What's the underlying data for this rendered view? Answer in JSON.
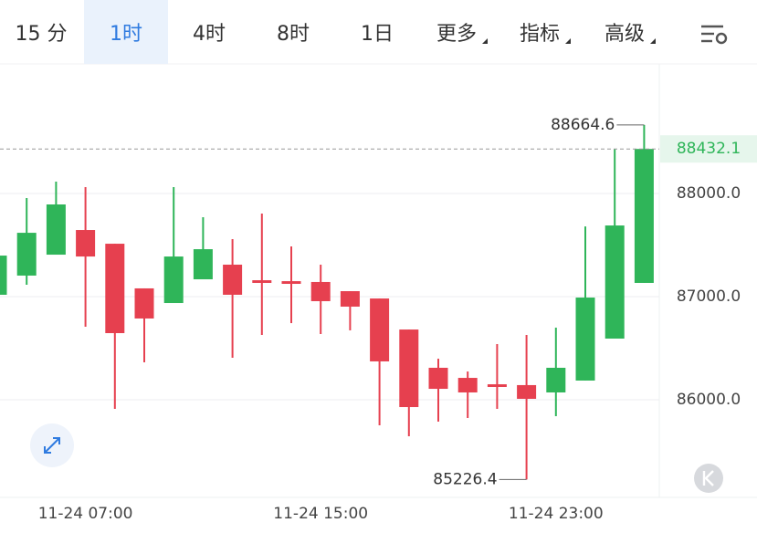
{
  "tabs": [
    "15 分",
    "1时",
    "4时",
    "8时",
    "1日",
    "更多",
    "指标",
    "高级"
  ],
  "selected_tab_index": 1,
  "dropdown_tab_indices": [
    5,
    6,
    7
  ],
  "chart_data": {
    "type": "candlestick",
    "categories": [
      null,
      null,
      null,
      "11-24 07:00",
      null,
      null,
      null,
      null,
      null,
      null,
      null,
      "11-24 15:00",
      null,
      null,
      null,
      null,
      null,
      null,
      null,
      "11-24 23:00",
      null,
      null,
      null
    ],
    "open": [
      87018,
      87204,
      87407,
      87646,
      87513,
      87080,
      86938,
      87168,
      87310,
      87159,
      87150,
      87142,
      87053,
      86982,
      86681,
      86310,
      86212,
      86150,
      86142,
      86071,
      86186,
      86593,
      87133
    ],
    "high": [
      87487,
      87956,
      88115,
      88062,
      87513,
      87080,
      88062,
      87770,
      87558,
      87805,
      87487,
      87310,
      87053,
      86982,
      86681,
      86398,
      86274,
      86540,
      86628,
      86699,
      87681,
      88434,
      88664.6
    ],
    "low": [
      86956,
      87115,
      87407,
      86708,
      85911,
      86363,
      86938,
      87168,
      86407,
      86628,
      86743,
      86637,
      86673,
      85752,
      85646,
      85788,
      85823,
      85911,
      85226.4,
      85841,
      86186,
      86593,
      87133
    ],
    "close": [
      87398,
      87619,
      87894,
      87389,
      86646,
      86788,
      87389,
      87460,
      87018,
      87133,
      87124,
      86956,
      86903,
      86372,
      85929,
      86106,
      86071,
      86124,
      86009,
      86310,
      86991,
      87690,
      88432.1
    ],
    "up_color": "#2fb559",
    "down_color": "#e6404f",
    "ylim": [
      85053,
      89257
    ],
    "yticks": [
      {
        "value": 86000,
        "label": "86000.0"
      },
      {
        "value": 87000,
        "label": "87000.0"
      },
      {
        "value": 88000,
        "label": "88000.0"
      }
    ],
    "grid": true,
    "last_price": {
      "value": 88432.1,
      "label": "88432.1"
    },
    "max_marker": {
      "value": 88664.6,
      "label": "88664.6"
    },
    "min_marker": {
      "value": 85226.4,
      "label": "85226.4"
    }
  }
}
